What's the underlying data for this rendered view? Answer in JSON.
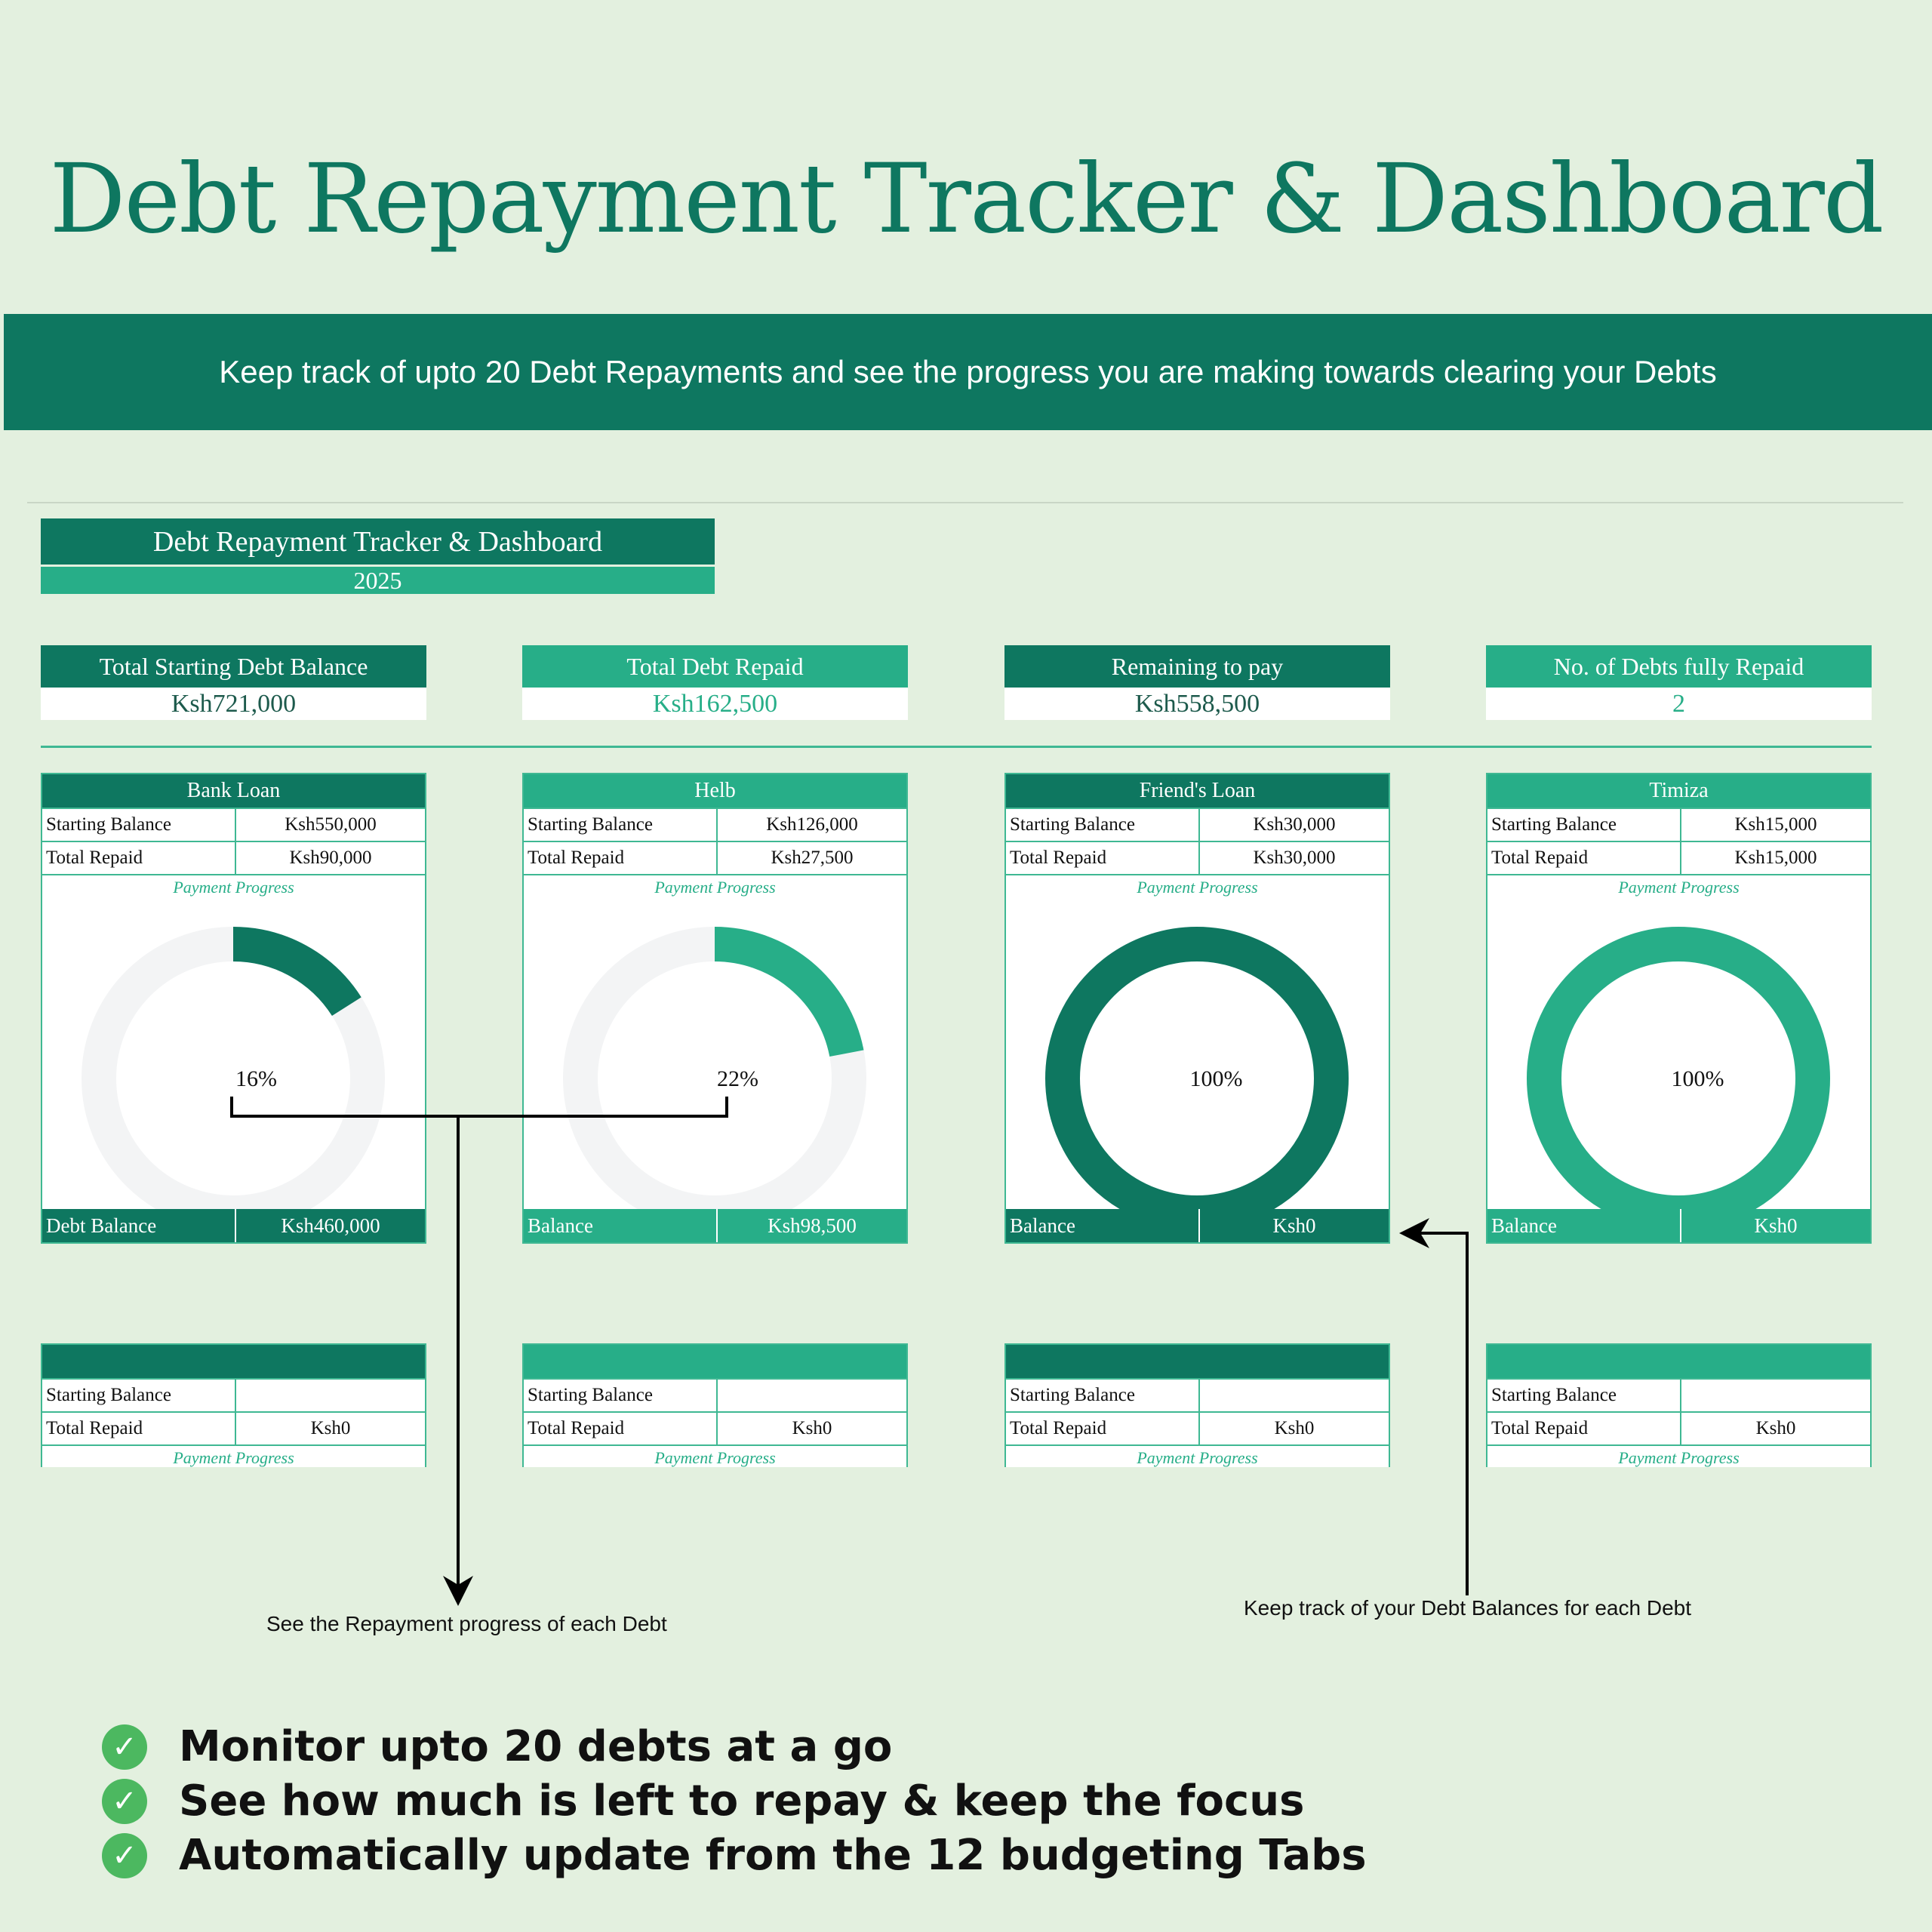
{
  "title": "Debt Repayment Tracker & Dashboard",
  "banner": "Keep track of upto 20 Debt Repayments and see the progress you are making towards clearing your Debts",
  "title_block": {
    "title": "Debt Repayment Tracker & Dashboard",
    "year": "2025"
  },
  "kpis": [
    {
      "label": "Total Starting Debt Balance",
      "value": "Ksh721,000"
    },
    {
      "label": "Total Debt Repaid",
      "value": "Ksh162,500"
    },
    {
      "label": "Remaining to pay",
      "value": "Ksh558,500"
    },
    {
      "label": "No. of Debts fully Repaid",
      "value": "2"
    }
  ],
  "colors": {
    "dark": "#0e7760",
    "teal": "#27ae88",
    "track": "#f3f4f5"
  },
  "debts": [
    {
      "name": "Bank Loan",
      "start_label": "Starting Balance",
      "start": "Ksh550,000",
      "repaid_label": "Total Repaid",
      "repaid": "Ksh90,000",
      "progress_label": "Payment Progress",
      "progress": 0.16,
      "progress_text": "16%",
      "balance_label": "Debt Balance",
      "balance": "Ksh460,000"
    },
    {
      "name": "Helb",
      "start_label": "Starting Balance",
      "start": "Ksh126,000",
      "repaid_label": "Total Repaid",
      "repaid": "Ksh27,500",
      "progress_label": "Payment Progress",
      "progress": 0.22,
      "progress_text": "22%",
      "balance_label": "Balance",
      "balance": "Ksh98,500"
    },
    {
      "name": "Friend's Loan",
      "start_label": "Starting Balance",
      "start": "Ksh30,000",
      "repaid_label": "Total Repaid",
      "repaid": "Ksh30,000",
      "progress_label": "Payment Progress",
      "progress": 1,
      "progress_text": "100%",
      "balance_label": "Balance",
      "balance": "Ksh0"
    },
    {
      "name": "Timiza",
      "start_label": "Starting Balance",
      "start": "Ksh15,000",
      "repaid_label": "Total Repaid",
      "repaid": "Ksh15,000",
      "progress_label": "Payment Progress",
      "progress": 1,
      "progress_text": "100%",
      "balance_label": "Balance",
      "balance": "Ksh0"
    }
  ],
  "empty_debts": [
    {
      "start_label": "Starting Balance",
      "repaid_label": "Total Repaid",
      "repaid": "Ksh0",
      "progress_label": "Payment Progress"
    },
    {
      "start_label": "Starting Balance",
      "repaid_label": "Total Repaid",
      "repaid": "Ksh0",
      "progress_label": "Payment Progress"
    },
    {
      "start_label": "Starting Balance",
      "repaid_label": "Total Repaid",
      "repaid": "Ksh0",
      "progress_label": "Payment Progress"
    },
    {
      "start_label": "Starting Balance",
      "repaid_label": "Total Repaid",
      "repaid": "Ksh0",
      "progress_label": "Payment Progress"
    }
  ],
  "annotations": {
    "progress": "See the Repayment progress of each Debt",
    "balances": "Keep track of your Debt Balances for each Debt"
  },
  "bullets": [
    "Monitor upto 20 debts at a go",
    "See how much is left to repay & keep the focus",
    "Automatically update from the 12 budgeting Tabs"
  ]
}
